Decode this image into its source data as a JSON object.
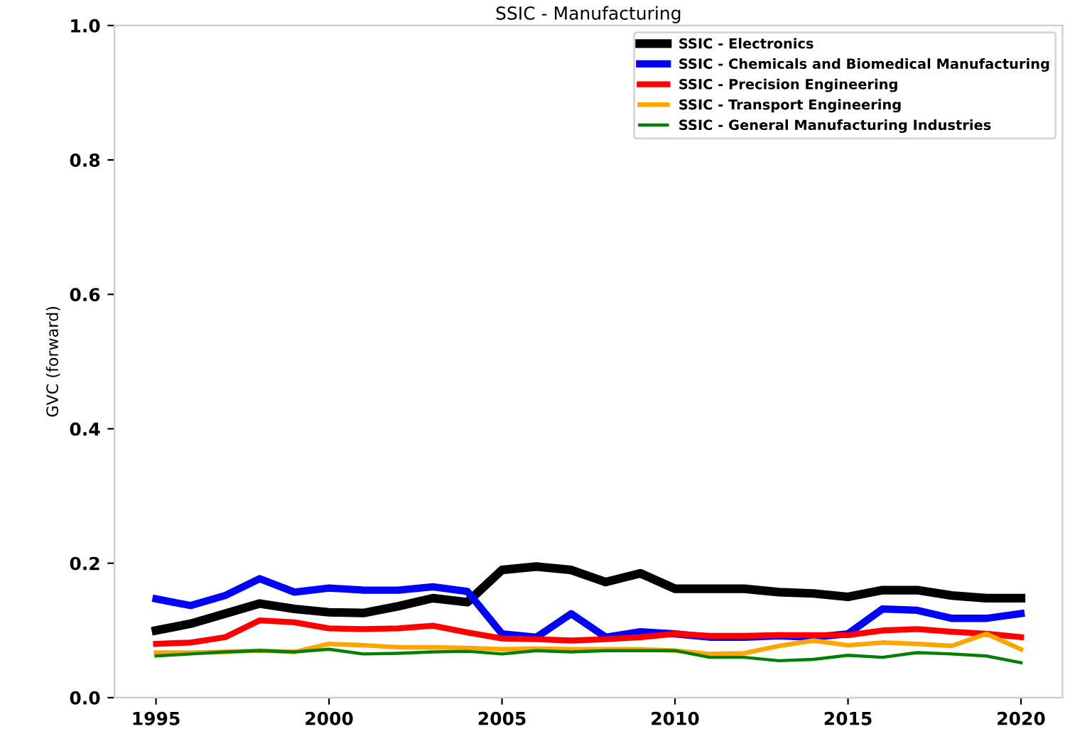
{
  "chart_data": {
    "type": "line",
    "title": "SSIC - Manufacturing",
    "ylabel": "GVC (forward)",
    "x": [
      1995,
      1996,
      1997,
      1998,
      1999,
      2000,
      2001,
      2002,
      2003,
      2004,
      2005,
      2006,
      2007,
      2008,
      2009,
      2010,
      2011,
      2012,
      2013,
      2014,
      2015,
      2016,
      2017,
      2018,
      2019,
      2020
    ],
    "series": [
      {
        "name": "SSIC - Electronics",
        "color": "#000000",
        "values": [
          0.1,
          0.11,
          0.125,
          0.14,
          0.132,
          0.127,
          0.126,
          0.136,
          0.148,
          0.142,
          0.19,
          0.195,
          0.19,
          0.172,
          0.185,
          0.162,
          0.162,
          0.162,
          0.157,
          0.155,
          0.15,
          0.16,
          0.16,
          0.152,
          0.148,
          0.148
        ]
      },
      {
        "name": "SSIC - Chemicals and Biomedical Manufacturing",
        "color": "#0000ff",
        "values": [
          0.147,
          0.137,
          0.152,
          0.177,
          0.157,
          0.163,
          0.16,
          0.16,
          0.165,
          0.158,
          0.095,
          0.09,
          0.125,
          0.09,
          0.098,
          0.095,
          0.09,
          0.09,
          0.092,
          0.09,
          0.095,
          0.132,
          0.13,
          0.118,
          0.118,
          0.125
        ]
      },
      {
        "name": "SSIC - Precision Engineering",
        "color": "#ff0000",
        "values": [
          0.08,
          0.082,
          0.09,
          0.115,
          0.112,
          0.103,
          0.102,
          0.103,
          0.107,
          0.097,
          0.088,
          0.087,
          0.085,
          0.087,
          0.09,
          0.095,
          0.092,
          0.092,
          0.093,
          0.093,
          0.093,
          0.1,
          0.102,
          0.098,
          0.095,
          0.09
        ]
      },
      {
        "name": "SSIC - Transport Engineering",
        "color": "#ffa500",
        "values": [
          0.067,
          0.067,
          0.068,
          0.07,
          0.068,
          0.08,
          0.078,
          0.075,
          0.075,
          0.074,
          0.072,
          0.073,
          0.072,
          0.072,
          0.072,
          0.07,
          0.065,
          0.066,
          0.077,
          0.085,
          0.078,
          0.082,
          0.08,
          0.077,
          0.095,
          0.072
        ]
      },
      {
        "name": "SSIC - General Manufacturing Industries",
        "color": "#008000",
        "values": [
          0.062,
          0.065,
          0.068,
          0.07,
          0.068,
          0.072,
          0.065,
          0.066,
          0.068,
          0.069,
          0.065,
          0.07,
          0.068,
          0.07,
          0.07,
          0.07,
          0.06,
          0.06,
          0.055,
          0.057,
          0.063,
          0.06,
          0.067,
          0.065,
          0.062,
          0.052
        ]
      }
    ],
    "xlim": [
      1993.8,
      2021.2
    ],
    "xticks": [
      1995,
      2000,
      2005,
      2010,
      2015,
      2020
    ],
    "ylim": [
      0,
      1.0
    ],
    "yticks": [
      {
        "value": 0,
        "label": "0.0"
      },
      {
        "value": 0.2,
        "label": "0.2"
      },
      {
        "value": 0.4,
        "label": "0.4"
      },
      {
        "value": 0.6,
        "label": "0.6"
      },
      {
        "value": 0.8,
        "label": "0.8"
      },
      {
        "value": 1.0,
        "label": "1.0"
      }
    ],
    "legend": "top right",
    "grid": false
  }
}
